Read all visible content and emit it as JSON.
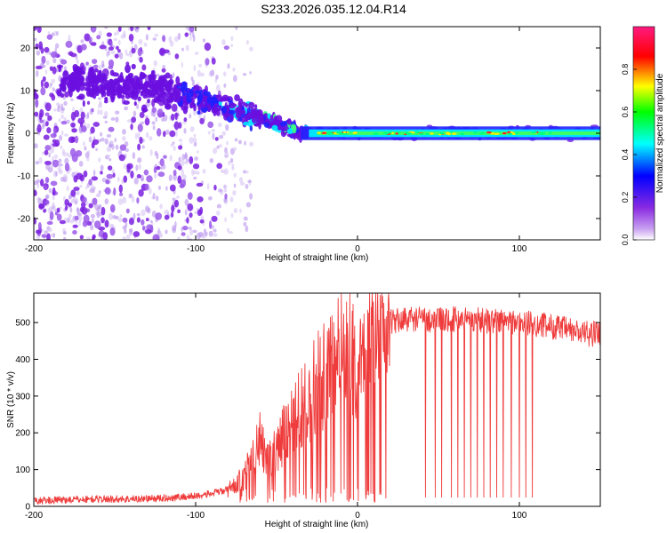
{
  "title": "S233.2026.035.12.04.R14",
  "chart_data": [
    {
      "type": "heatmap",
      "title": "S233.2026.035.12.04.R14",
      "xlabel": "Height of straight line (km)",
      "ylabel": "Frequency (Hz)",
      "xlim": [
        -200,
        150
      ],
      "ylim": [
        -25,
        25
      ],
      "xticks": [
        -200,
        -100,
        0,
        100
      ],
      "yticks": [
        -20,
        -10,
        0,
        10,
        20
      ],
      "colorbar": {
        "label": "Normalized spectral amplitude",
        "range": [
          0,
          1
        ],
        "ticks": [
          "0.0",
          "0.2",
          "0.4",
          "0.6",
          "0.8"
        ],
        "colormap": [
          "#ffffff",
          "#8a2be2",
          "#0000ff",
          "#00ffff",
          "#00ff00",
          "#ffff00",
          "#ff0000",
          "#ff1a80"
        ]
      },
      "features": {
        "narrowband_line_frequency_hz": 0,
        "narrowband_start_km": -35,
        "scattered_band_center_hz": [
          12,
          10,
          7,
          3,
          0
        ],
        "scattered_band_km": [
          -170,
          -120,
          -90,
          -55,
          -35
        ]
      }
    },
    {
      "type": "line",
      "xlabel": "Height of straight line (km)",
      "ylabel": "SNR (10 * v/v)",
      "xlim": [
        -200,
        150
      ],
      "ylim": [
        0,
        580
      ],
      "xticks": [
        -200,
        -100,
        0,
        100
      ],
      "yticks": [
        0,
        100,
        200,
        300,
        400,
        500
      ],
      "color": "#ef3b3b",
      "series": [
        {
          "x": [
            -200,
            -180,
            -160,
            -140,
            -120,
            -100,
            -90,
            -80,
            -70,
            -65,
            -60,
            -55,
            -50,
            -45,
            -40,
            -35,
            -30,
            -25,
            -20,
            -15,
            -10,
            -5,
            0,
            5,
            10,
            20,
            30,
            40,
            50,
            60,
            70,
            80,
            90,
            100,
            110,
            120,
            130,
            140,
            150
          ],
          "values": [
            15,
            18,
            20,
            20,
            22,
            28,
            35,
            45,
            80,
            140,
            180,
            120,
            150,
            200,
            230,
            260,
            300,
            330,
            350,
            360,
            380,
            390,
            400,
            420,
            450,
            500,
            510,
            510,
            505,
            510,
            510,
            505,
            505,
            500,
            495,
            490,
            480,
            470,
            470
          ]
        }
      ],
      "dropout_x_km": [
        42,
        48,
        52,
        58,
        62,
        66,
        70,
        74,
        78,
        82,
        86,
        90,
        95,
        100,
        104,
        108
      ],
      "dropout_floor": 25
    }
  ]
}
